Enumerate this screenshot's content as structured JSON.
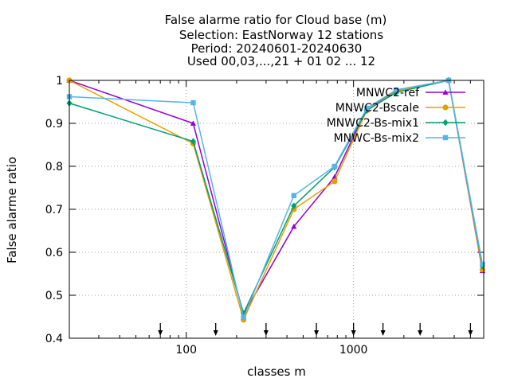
{
  "chart_data": {
    "type": "line",
    "title_lines": [
      "False alarme ratio  for Cloud base (m)",
      "Selection: EastNorway     12 stations",
      "Period: 20240601-20240630",
      "Used 00,03,...,21 + 01 02 ... 12"
    ],
    "xlabel": "classes m",
    "ylabel": "False alarme ratio",
    "x_scale": "log",
    "xlim": [
      20,
      6000
    ],
    "ylim": [
      0.4,
      1.0
    ],
    "x_ticks": [
      {
        "value": 100,
        "label": "100"
      },
      {
        "value": 1000,
        "label": "1000"
      }
    ],
    "y_ticks": [
      {
        "value": 0.4,
        "label": "0.4"
      },
      {
        "value": 0.5,
        "label": "0.5"
      },
      {
        "value": 0.6,
        "label": "0.6"
      },
      {
        "value": 0.7,
        "label": "0.7"
      },
      {
        "value": 0.8,
        "label": "0.8"
      },
      {
        "value": 0.9,
        "label": "0.9"
      },
      {
        "value": 1.0,
        "label": "1"
      }
    ],
    "grid": true,
    "legend_position": "top-right",
    "class_limit_arrows": [
      70,
      150,
      300,
      600,
      1000,
      1500,
      2500,
      5000
    ],
    "x": [
      20,
      110,
      220,
      440,
      770,
      1200,
      1800,
      3700,
      5900
    ],
    "series": [
      {
        "name": "MNWC2-ref",
        "color": "#9400d3",
        "marker": "triangle",
        "values": [
          1.0,
          0.9,
          0.455,
          0.66,
          0.775,
          0.935,
          0.975,
          1.0,
          0.557
        ]
      },
      {
        "name": "MNWC2-Bscale",
        "color": "#e69f00",
        "marker": "circle",
        "values": [
          1.0,
          0.853,
          0.443,
          0.7,
          0.765,
          0.93,
          0.975,
          1.0,
          0.56
        ]
      },
      {
        "name": "MNWC2-Bs-mix1",
        "color": "#009e73",
        "marker": "diamond",
        "values": [
          0.947,
          0.858,
          0.458,
          0.708,
          0.798,
          0.93,
          0.972,
          1.0,
          0.568
        ]
      },
      {
        "name": "MNWC-Bs-mix2",
        "color": "#56b4e9",
        "marker": "square",
        "values": [
          0.962,
          0.948,
          0.448,
          0.732,
          0.8,
          0.935,
          0.978,
          1.0,
          0.572
        ]
      }
    ]
  }
}
